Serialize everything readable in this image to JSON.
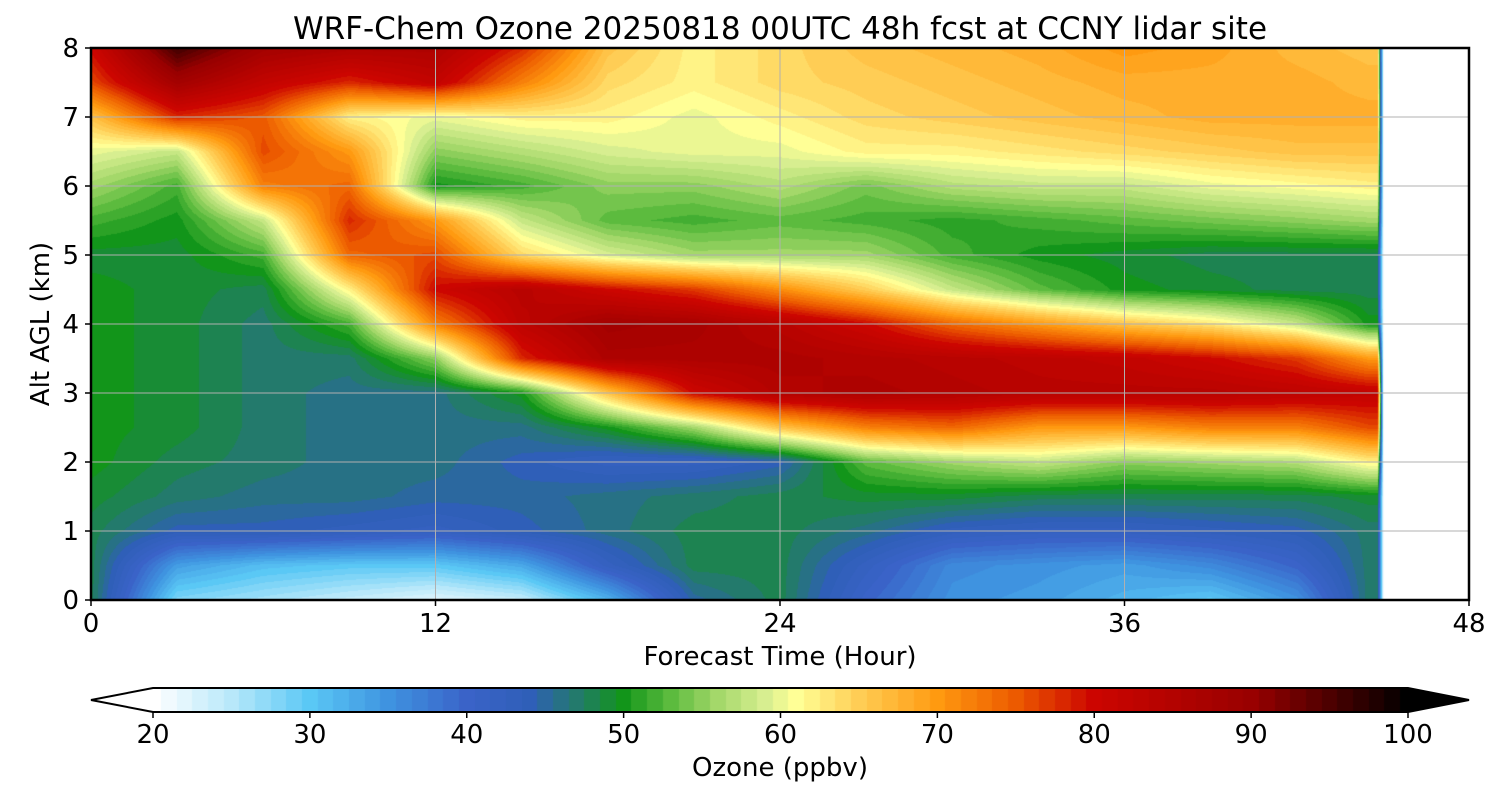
{
  "chart_data": {
    "type": "heatmap",
    "title": "WRF-Chem Ozone  20250818 00UTC 48h fcst at CCNY lidar site",
    "xlabel": "Forecast Time (Hour)",
    "ylabel": "Alt AGL (km)",
    "xlim": [
      0,
      48
    ],
    "ylim": [
      0,
      8
    ],
    "xticks": [
      0,
      12,
      24,
      36,
      48
    ],
    "yticks": [
      0,
      1,
      2,
      3,
      4,
      5,
      6,
      7,
      8
    ],
    "grid": true,
    "data_end_hour": 44.8,
    "z_times": [
      0,
      3,
      6,
      9,
      12,
      15,
      18,
      21,
      24,
      27,
      30,
      33,
      36,
      39,
      42,
      44.5
    ],
    "z_altitudes": [
      0,
      0.5,
      1,
      1.5,
      2,
      2.5,
      3,
      3.5,
      4,
      4.5,
      5,
      5.5,
      6,
      6.5,
      7,
      7.5,
      8
    ],
    "z_values": [
      [
        48,
        28,
        26,
        24,
        22,
        24,
        32,
        45,
        48,
        40,
        35,
        34,
        32,
        30,
        35,
        47
      ],
      [
        48,
        34,
        31,
        30,
        30,
        33,
        42,
        48,
        48,
        42,
        36,
        35,
        34,
        36,
        40,
        47
      ],
      [
        48,
        44,
        44,
        43,
        42,
        44,
        46,
        48,
        48,
        46,
        43,
        42,
        42,
        43,
        44,
        47
      ],
      [
        49,
        47,
        46,
        46,
        45,
        45,
        46,
        47,
        48,
        49,
        49,
        48,
        48,
        48,
        48,
        49
      ],
      [
        50,
        48,
        47,
        46,
        46,
        44,
        42,
        42,
        44,
        53,
        56,
        58,
        55,
        56,
        57,
        62
      ],
      [
        50,
        49,
        47,
        46,
        46,
        46,
        50,
        56,
        66,
        72,
        74,
        70,
        70,
        72,
        72,
        76
      ],
      [
        50,
        49,
        47,
        46,
        46,
        50,
        66,
        80,
        85,
        86,
        85,
        84,
        84,
        84,
        83,
        82
      ],
      [
        50,
        49,
        47,
        47,
        55,
        78,
        86,
        86,
        86,
        85,
        84,
        83,
        82,
        80,
        77,
        70
      ],
      [
        50,
        49,
        47,
        52,
        72,
        83,
        88,
        87,
        84,
        80,
        74,
        70,
        66,
        63,
        58,
        50
      ],
      [
        50,
        49,
        48,
        62,
        80,
        84,
        80,
        77,
        71,
        65,
        58,
        53,
        50,
        49,
        48,
        48
      ],
      [
        49,
        49,
        52,
        74,
        76,
        64,
        59,
        56,
        56,
        56,
        52,
        50,
        49,
        48,
        48,
        48
      ],
      [
        52,
        50,
        58,
        78,
        70,
        58,
        53,
        52,
        53,
        52,
        51,
        52,
        53,
        54,
        55,
        56
      ],
      [
        56,
        52,
        72,
        74,
        50,
        52,
        55,
        55,
        57,
        54,
        57,
        58,
        58,
        60,
        61,
        62
      ],
      [
        60,
        58,
        76,
        70,
        55,
        57,
        59,
        60,
        60,
        62,
        62,
        63,
        64,
        65,
        66,
        66
      ],
      [
        66,
        78,
        75,
        62,
        60,
        62,
        62,
        60,
        62,
        64,
        65,
        66,
        67,
        68,
        68,
        68
      ],
      [
        76,
        88,
        82,
        78,
        82,
        72,
        64,
        62,
        64,
        65,
        66,
        67,
        68,
        68,
        68,
        67
      ],
      [
        80,
        96,
        88,
        86,
        86,
        78,
        66,
        62,
        64,
        66,
        67,
        68,
        70,
        69,
        67,
        66
      ]
    ],
    "colorbar": {
      "label": "Ozone  (ppbv)",
      "min": 20,
      "max": 100,
      "ticks": [
        20,
        30,
        40,
        50,
        60,
        70,
        80,
        90,
        100
      ],
      "extend": "both",
      "color_stops": [
        {
          "value": 20,
          "color": "#ffffff"
        },
        {
          "value": 25,
          "color": "#b8e8fa"
        },
        {
          "value": 30,
          "color": "#5ac8f5"
        },
        {
          "value": 35,
          "color": "#3f93e0"
        },
        {
          "value": 40,
          "color": "#3a63c8"
        },
        {
          "value": 44,
          "color": "#2f5fb8"
        },
        {
          "value": 47,
          "color": "#237a6c"
        },
        {
          "value": 50,
          "color": "#12951a"
        },
        {
          "value": 53,
          "color": "#5cbb3e"
        },
        {
          "value": 56,
          "color": "#a4d86a"
        },
        {
          "value": 59,
          "color": "#d7ee90"
        },
        {
          "value": 61,
          "color": "#ffff96"
        },
        {
          "value": 65,
          "color": "#ffcd55"
        },
        {
          "value": 70,
          "color": "#ff9a10"
        },
        {
          "value": 75,
          "color": "#ec5a00"
        },
        {
          "value": 80,
          "color": "#cc0500"
        },
        {
          "value": 90,
          "color": "#990000"
        },
        {
          "value": 100,
          "color": "#000000"
        }
      ]
    }
  }
}
